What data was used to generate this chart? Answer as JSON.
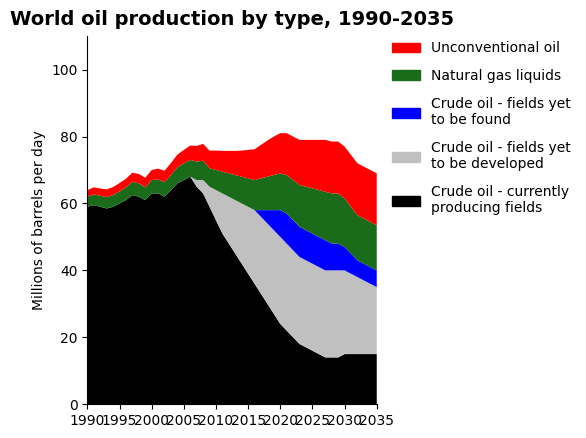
{
  "title": "World oil production by type, 1990-2035",
  "ylabel": "Millions of barrels per day",
  "years": [
    1990,
    1991,
    1992,
    1993,
    1994,
    1995,
    1996,
    1997,
    1998,
    1999,
    2000,
    2001,
    2002,
    2003,
    2004,
    2005,
    2006,
    2007,
    2008,
    2009,
    2010,
    2011,
    2012,
    2013,
    2014,
    2015,
    2016,
    2017,
    2018,
    2019,
    2020,
    2021,
    2022,
    2023,
    2024,
    2025,
    2026,
    2027,
    2028,
    2029,
    2030,
    2031,
    2032,
    2033,
    2034,
    2035
  ],
  "crude_current": [
    59,
    59.5,
    59,
    58.5,
    59,
    60,
    61,
    62.5,
    62,
    61,
    63,
    63,
    62,
    64,
    66,
    67,
    68,
    65,
    63,
    59,
    55,
    51,
    48,
    45,
    42,
    39,
    36,
    33,
    30,
    27,
    24,
    22,
    20,
    18,
    17,
    16,
    15,
    14,
    14,
    14,
    15,
    15,
    15,
    15,
    15,
    15
  ],
  "crude_develop": [
    0,
    0,
    0,
    0,
    0,
    0,
    0,
    0,
    0,
    0,
    0,
    0,
    0,
    0,
    0,
    0,
    0,
    2,
    4,
    6,
    9,
    12,
    14,
    16,
    18,
    20,
    22,
    23,
    24,
    25,
    26,
    26,
    26,
    26,
    26,
    26,
    26,
    26,
    26,
    26,
    25,
    24,
    23,
    22,
    21,
    20
  ],
  "crude_found": [
    0,
    0,
    0,
    0,
    0,
    0,
    0,
    0,
    0,
    0,
    0,
    0,
    0,
    0,
    0,
    0,
    0,
    0,
    0,
    0,
    0,
    0,
    0,
    0,
    0,
    0,
    0,
    2,
    4,
    6,
    8,
    9,
    9,
    9,
    9,
    9,
    9,
    9,
    8,
    8,
    7,
    6,
    5,
    5,
    5,
    5
  ],
  "ngl": [
    3.0,
    3.2,
    3.3,
    3.4,
    3.5,
    3.6,
    3.8,
    4.0,
    4.0,
    3.8,
    4.0,
    4.2,
    4.4,
    4.5,
    4.8,
    5.0,
    5.0,
    5.5,
    5.8,
    5.5,
    6.0,
    6.5,
    7.0,
    7.5,
    8.0,
    8.5,
    9.0,
    9.5,
    10.0,
    10.5,
    11.0,
    11.5,
    12.0,
    12.5,
    13.0,
    13.5,
    14.0,
    14.5,
    15.0,
    15.0,
    14.5,
    14.0,
    13.5,
    13.5,
    13.5,
    13.5
  ],
  "unconventional": [
    2.0,
    2.1,
    2.2,
    2.3,
    2.4,
    2.5,
    2.6,
    2.7,
    2.8,
    2.9,
    3.0,
    3.2,
    3.4,
    3.6,
    3.8,
    4.0,
    4.3,
    4.7,
    5.0,
    5.3,
    5.8,
    6.2,
    6.7,
    7.2,
    7.8,
    8.5,
    9.2,
    10.0,
    10.8,
    11.5,
    12.0,
    12.5,
    13.0,
    13.5,
    14.0,
    14.5,
    15.0,
    15.5,
    15.5,
    15.5,
    15.5,
    15.5,
    15.5,
    15.5,
    15.5,
    15.5
  ],
  "colors": {
    "crude_current": "#000000",
    "crude_develop": "#c0c0c0",
    "crude_found": "#0000ff",
    "ngl": "#1a6b1a",
    "unconventional": "#ff0000"
  },
  "legend_labels": [
    "Unconventional oil",
    "Natural gas liquids",
    "Crude oil - fields yet\nto be found",
    "Crude oil - fields yet\nto be developed",
    "Crude oil - currently\nproducing fields"
  ],
  "ylim": [
    0,
    110
  ],
  "xticks": [
    1990,
    1995,
    2000,
    2005,
    2010,
    2015,
    2020,
    2025,
    2030,
    2035
  ],
  "yticks": [
    0,
    20,
    40,
    60,
    80,
    100
  ],
  "background_color": "#ffffff"
}
